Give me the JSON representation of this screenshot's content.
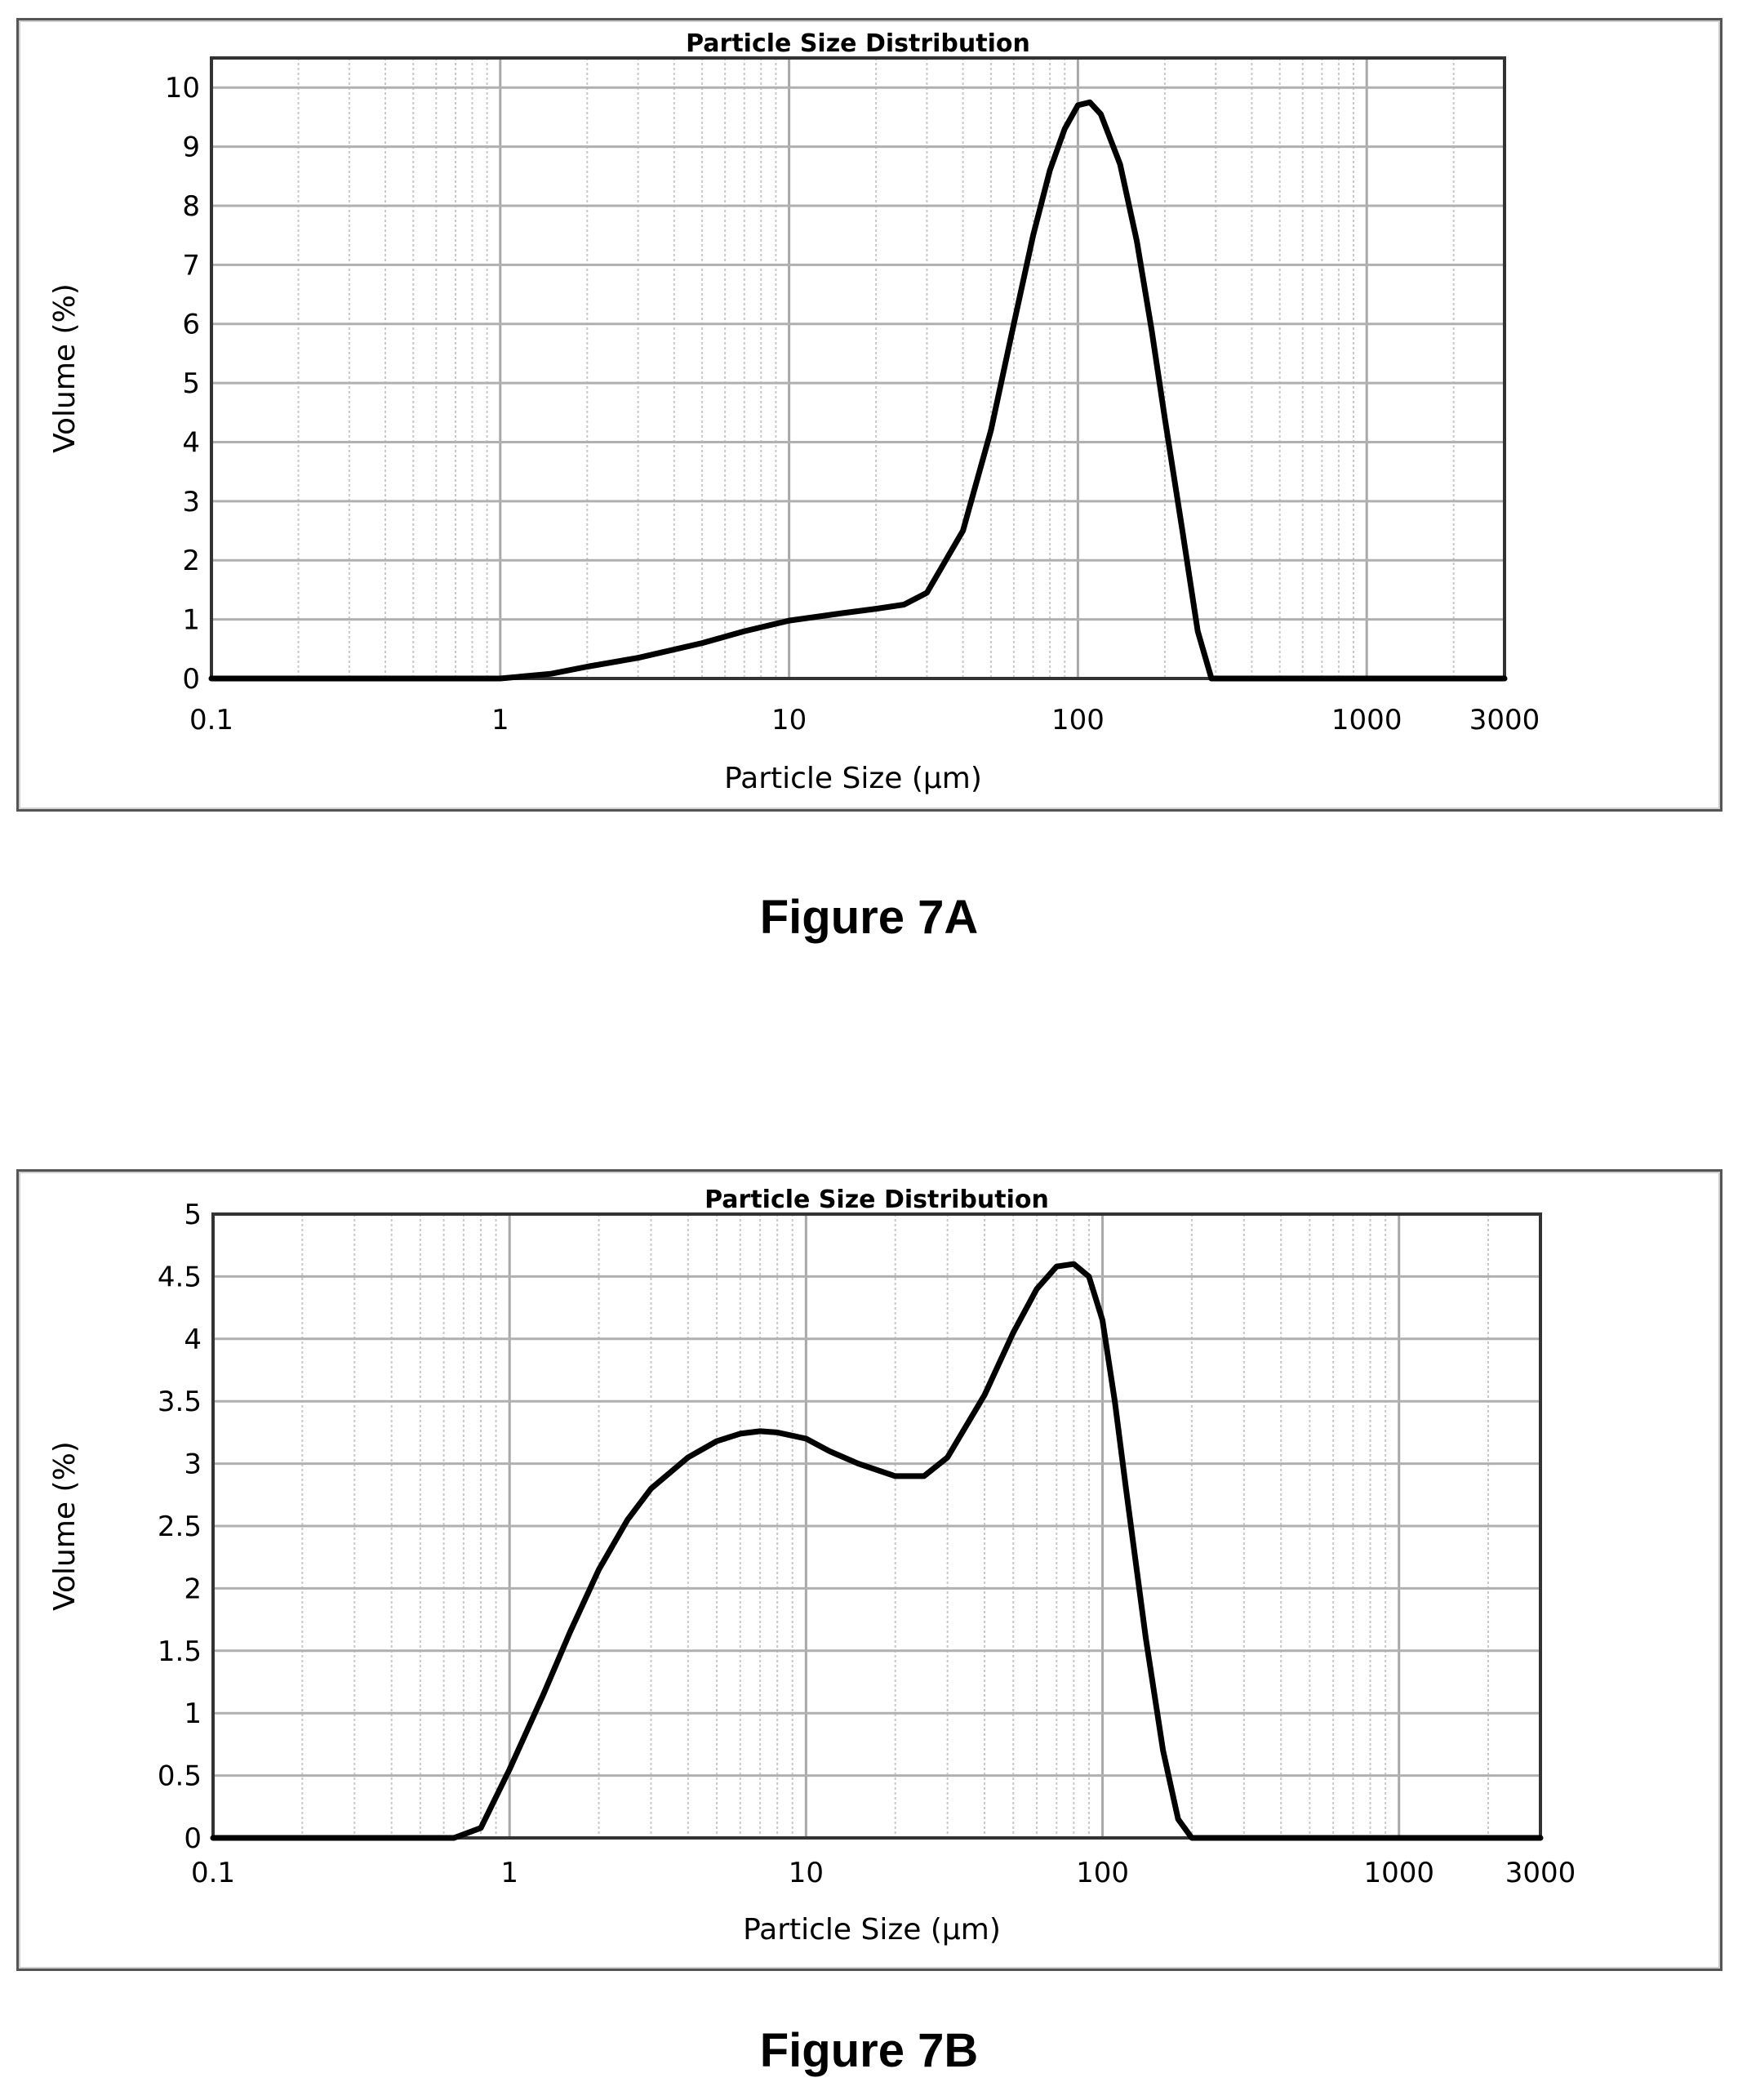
{
  "figures": [
    {
      "caption": "Figure 7A",
      "chart_data": {
        "type": "line",
        "title": "Particle Size Distribution",
        "xlabel": "Particle Size (µm)",
        "ylabel": "Volume (%)",
        "xscale": "log",
        "xlim": [
          0.1,
          3000
        ],
        "ylim": [
          0,
          10.5
        ],
        "x_ticks": [
          0.1,
          1,
          10,
          100,
          1000,
          3000
        ],
        "x_tick_labels": [
          "0.1",
          "1",
          "10",
          "100",
          "1000",
          "3000"
        ],
        "y_ticks": [
          0,
          1,
          2,
          3,
          4,
          5,
          6,
          7,
          8,
          9,
          10
        ],
        "y_tick_labels": [
          "0",
          "1",
          "2",
          "3",
          "4",
          "5",
          "6",
          "7",
          "8",
          "9",
          "10"
        ],
        "grid": true,
        "series": [
          {
            "color": "#000000",
            "x": [
              0.1,
              1,
              1.5,
              2,
              3,
              5,
              7,
              10,
              15,
              20,
              25,
              30,
              40,
              50,
              60,
              70,
              80,
              90,
              100,
              110,
              120,
              140,
              160,
              180,
              200,
              230,
              260,
              290,
              3000
            ],
            "y": [
              0,
              0,
              0.08,
              0.2,
              0.35,
              0.6,
              0.8,
              0.98,
              1.1,
              1.18,
              1.25,
              1.45,
              2.5,
              4.2,
              6.0,
              7.5,
              8.6,
              9.3,
              9.7,
              9.75,
              9.55,
              8.7,
              7.4,
              5.9,
              4.4,
              2.5,
              0.8,
              0,
              0
            ]
          }
        ]
      }
    },
    {
      "caption": "Figure 7B",
      "chart_data": {
        "type": "line",
        "title": "Particle Size Distribution",
        "xlabel": "Particle Size (µm)",
        "ylabel": "Volume (%)",
        "xscale": "log",
        "xlim": [
          0.1,
          3000
        ],
        "ylim": [
          0,
          5
        ],
        "x_ticks": [
          0.1,
          1,
          10,
          100,
          1000,
          3000
        ],
        "x_tick_labels": [
          "0.1",
          "1",
          "10",
          "100",
          "1000",
          "3000"
        ],
        "y_ticks": [
          0,
          0.5,
          1,
          1.5,
          2,
          2.5,
          3,
          3.5,
          4,
          4.5,
          5
        ],
        "y_tick_labels": [
          "0",
          "0.5",
          "1",
          "1.5",
          "2",
          "2.5",
          "3",
          "3.5",
          "4",
          "4.5",
          "5"
        ],
        "grid": true,
        "series": [
          {
            "color": "#000000",
            "x": [
              0.1,
              0.65,
              0.8,
              1,
              1.3,
              1.6,
              2,
              2.5,
              3,
              4,
              5,
              6,
              7,
              8,
              10,
              12,
              15,
              20,
              25,
              30,
              40,
              50,
              60,
              70,
              80,
              90,
              100,
              110,
              120,
              140,
              160,
              180,
              200,
              3000
            ],
            "y": [
              0,
              0,
              0.08,
              0.55,
              1.15,
              1.65,
              2.15,
              2.55,
              2.8,
              3.05,
              3.18,
              3.24,
              3.26,
              3.25,
              3.2,
              3.1,
              3.0,
              2.9,
              2.9,
              3.05,
              3.55,
              4.05,
              4.4,
              4.58,
              4.6,
              4.5,
              4.15,
              3.5,
              2.8,
              1.6,
              0.7,
              0.15,
              0,
              0
            ]
          }
        ]
      }
    }
  ]
}
